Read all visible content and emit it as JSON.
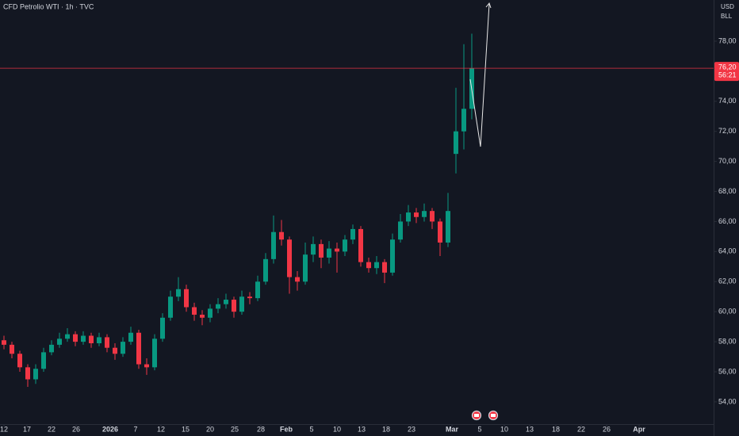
{
  "chart_data": {
    "type": "candlestick",
    "title": "CFD Petrolio WTI · 1h · TVC",
    "currency": "USD",
    "unit": "BLL",
    "up_color": "#089981",
    "down_color": "#f23645",
    "x": [
      0.5,
      1.5,
      2.5,
      3.5,
      4.5,
      5.5,
      6.5,
      7.5,
      8.5,
      9.5,
      10.5,
      11.5,
      12.5,
      13.5,
      14.5,
      15.5,
      16.5,
      17.5,
      18.5,
      19.5,
      20.5,
      21.5,
      22.5,
      23.5,
      24.5,
      25.5,
      26.5,
      27.5,
      28.5,
      29.5,
      30.5,
      31.5,
      32.5,
      33.5,
      34.5,
      35.5,
      36.5,
      37.5,
      38.5,
      39.5,
      40.5,
      41.5,
      42.5,
      43.5,
      44.5,
      45.5,
      46.5,
      47.5,
      48.5,
      49.5,
      50.5,
      51.5,
      52.5,
      53.5,
      54.5,
      55.5,
      56.5,
      57.5,
      58.5,
      59.5
    ],
    "open": [
      58.1,
      57.8,
      57.2,
      56.3,
      55.5,
      56.2,
      57.3,
      57.8,
      58.2,
      58.5,
      58.0,
      58.4,
      57.9,
      58.3,
      57.6,
      57.2,
      58.0,
      58.6,
      56.5,
      56.3,
      58.2,
      59.6,
      61.0,
      61.5,
      60.3,
      59.8,
      59.6,
      60.2,
      60.5,
      60.8,
      60.0,
      61.0,
      60.9,
      62.0,
      63.5,
      65.3,
      64.8,
      62.3,
      62.0,
      63.8,
      64.5,
      63.6,
      64.2,
      64.0,
      64.8,
      65.5,
      63.3,
      62.9,
      63.3,
      62.6,
      64.8,
      66.0,
      66.6,
      66.3,
      66.7,
      66.0,
      64.6,
      70.5,
      72.0,
      73.5
    ],
    "high": [
      58.4,
      58.0,
      57.4,
      56.5,
      56.5,
      57.6,
      58.1,
      58.6,
      58.9,
      58.7,
      58.7,
      58.6,
      58.6,
      58.5,
      57.9,
      58.3,
      59.0,
      58.8,
      56.9,
      58.5,
      59.9,
      61.4,
      62.3,
      61.8,
      60.6,
      60.1,
      60.5,
      60.9,
      61.2,
      61.0,
      61.4,
      61.3,
      62.4,
      63.9,
      66.4,
      66.1,
      65.0,
      62.7,
      64.6,
      65.0,
      64.8,
      64.7,
      64.6,
      65.1,
      65.8,
      65.7,
      63.6,
      63.7,
      63.5,
      65.2,
      66.5,
      67.1,
      66.9,
      67.2,
      66.9,
      66.2,
      67.9,
      74.9,
      77.8,
      78.5
    ],
    "low": [
      57.5,
      56.9,
      56.0,
      55.0,
      55.2,
      56.0,
      57.1,
      57.6,
      58.0,
      57.7,
      57.8,
      57.6,
      57.7,
      57.3,
      56.8,
      57.0,
      57.8,
      56.2,
      55.8,
      56.1,
      58.0,
      59.4,
      60.7,
      60.0,
      59.4,
      59.1,
      59.3,
      59.9,
      60.2,
      59.6,
      59.8,
      60.5,
      60.7,
      61.8,
      63.2,
      64.4,
      61.2,
      61.4,
      61.8,
      63.3,
      62.9,
      63.2,
      62.6,
      63.7,
      64.5,
      63.0,
      62.6,
      62.5,
      61.9,
      62.4,
      64.6,
      65.7,
      65.9,
      66.0,
      65.5,
      63.7,
      64.3,
      69.2,
      70.8,
      72.8
    ],
    "close": [
      57.8,
      57.2,
      56.3,
      55.5,
      56.2,
      57.3,
      57.8,
      58.2,
      58.5,
      58.0,
      58.4,
      57.9,
      58.3,
      57.6,
      57.2,
      58.0,
      58.6,
      56.5,
      56.3,
      58.2,
      59.6,
      61.0,
      61.5,
      60.3,
      59.8,
      59.6,
      60.2,
      60.5,
      60.8,
      60.0,
      61.0,
      60.9,
      62.0,
      63.5,
      65.3,
      64.8,
      62.3,
      62.0,
      63.8,
      64.5,
      63.6,
      64.2,
      64.0,
      64.8,
      65.5,
      63.3,
      62.9,
      63.3,
      62.6,
      64.8,
      66.0,
      66.6,
      66.3,
      66.7,
      66.0,
      64.6,
      66.7,
      72.0,
      73.5,
      76.2
    ],
    "last_price": {
      "value": 76.2,
      "label": "76,20"
    },
    "countdown": "56:21",
    "xlim": [
      0,
      90
    ],
    "ylim": [
      52.52,
      80.74
    ],
    "yticks": [
      {
        "value": 54,
        "label": "54,00"
      },
      {
        "value": 56,
        "label": "56,00"
      },
      {
        "value": 58,
        "label": "58,00"
      },
      {
        "value": 60,
        "label": "60,00"
      },
      {
        "value": 62,
        "label": "62,00"
      },
      {
        "value": 64,
        "label": "64,00"
      },
      {
        "value": 66,
        "label": "66,00"
      },
      {
        "value": 68,
        "label": "68,00"
      },
      {
        "value": 70,
        "label": "70,00"
      },
      {
        "value": 72,
        "label": "72,00"
      },
      {
        "value": 74,
        "label": "74,00"
      },
      {
        "value": 76,
        "label": "76,00"
      },
      {
        "value": 78,
        "label": "78,00"
      }
    ],
    "xticks": [
      {
        "value": 0.5,
        "label": "12"
      },
      {
        "value": 3.4,
        "label": "17"
      },
      {
        "value": 6.5,
        "label": "22"
      },
      {
        "value": 9.6,
        "label": "26"
      },
      {
        "value": 13.9,
        "label": "2026"
      },
      {
        "value": 17.1,
        "label": "7"
      },
      {
        "value": 20.3,
        "label": "12"
      },
      {
        "value": 23.4,
        "label": "15"
      },
      {
        "value": 26.5,
        "label": "20"
      },
      {
        "value": 29.6,
        "label": "25"
      },
      {
        "value": 32.9,
        "label": "28"
      },
      {
        "value": 36.1,
        "label": "Feb"
      },
      {
        "value": 39.3,
        "label": "5"
      },
      {
        "value": 42.5,
        "label": "10"
      },
      {
        "value": 45.6,
        "label": "13"
      },
      {
        "value": 48.7,
        "label": "18"
      },
      {
        "value": 51.9,
        "label": "23"
      },
      {
        "value": 57.0,
        "label": "Mar"
      },
      {
        "value": 60.5,
        "label": "5"
      },
      {
        "value": 63.6,
        "label": "10"
      },
      {
        "value": 66.8,
        "label": "13"
      },
      {
        "value": 70.1,
        "label": "18"
      },
      {
        "value": 73.3,
        "label": "22"
      },
      {
        "value": 76.5,
        "label": "26"
      },
      {
        "value": 80.6,
        "label": "Apr"
      }
    ]
  }
}
